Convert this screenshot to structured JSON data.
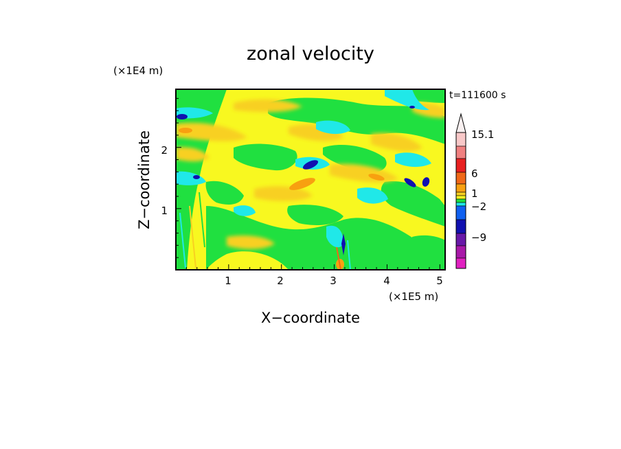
{
  "chart_data": {
    "type": "heatmap",
    "title": "zonal velocity",
    "xlabel": "X−coordinate",
    "ylabel": "Z−coordinate",
    "x_unit": "(×1E5 m)",
    "y_unit": "(×1E4 m)",
    "time_label": "t=111600 s",
    "xlim": [
      0,
      5.1
    ],
    "ylim": [
      0,
      2.95
    ],
    "x_ticks": [
      "1",
      "2",
      "3",
      "4",
      "5"
    ],
    "y_ticks": [
      "1",
      "2"
    ],
    "x_tick_values": [
      1,
      2,
      3,
      4,
      5
    ],
    "y_tick_values": [
      1,
      2
    ],
    "grid": false,
    "colorbar": {
      "labels": [
        "15.1",
        "6",
        "1",
        "−2",
        "−9"
      ],
      "colors": [
        "#f8c8c8",
        "#f08080",
        "#e82020",
        "#f06818",
        "#f8a010",
        "#f8d020",
        "#f8f820",
        "#20e040",
        "#20e8e8",
        "#1060f0",
        "#1010b0",
        "#6818a8",
        "#a818a8",
        "#e020c0",
        "#f020e0"
      ],
      "top_arrow_color": "#f8f0f0"
    }
  }
}
